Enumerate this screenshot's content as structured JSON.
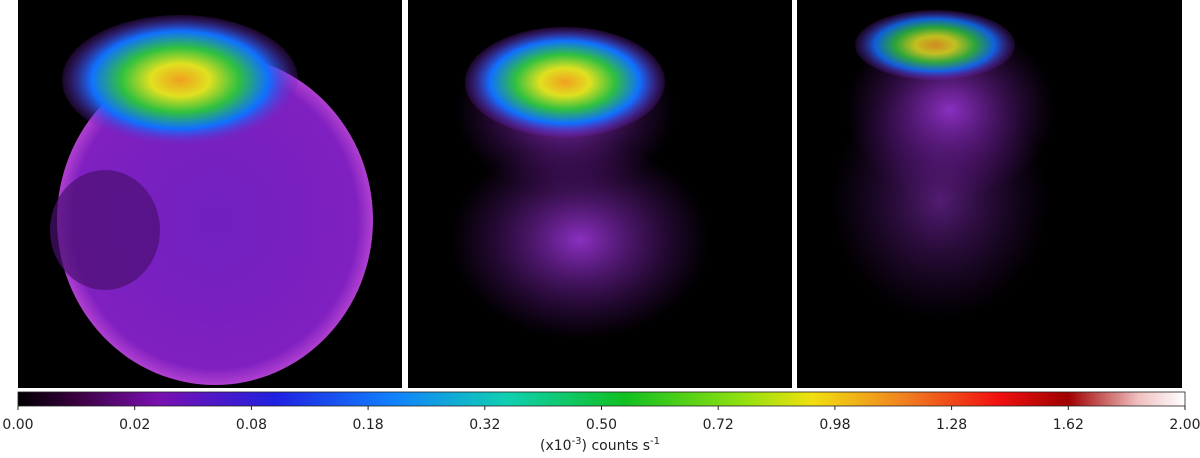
{
  "colorbar": {
    "ticks": [
      "0.00",
      "0.02",
      "0.08",
      "0.18",
      "0.32",
      "0.50",
      "0.72",
      "0.98",
      "1.28",
      "1.62",
      "2.00"
    ],
    "label": {
      "prefix": "(x10",
      "exponent": "-3",
      "unit": ") counts s",
      "unit_exponent": "-1"
    }
  }
}
